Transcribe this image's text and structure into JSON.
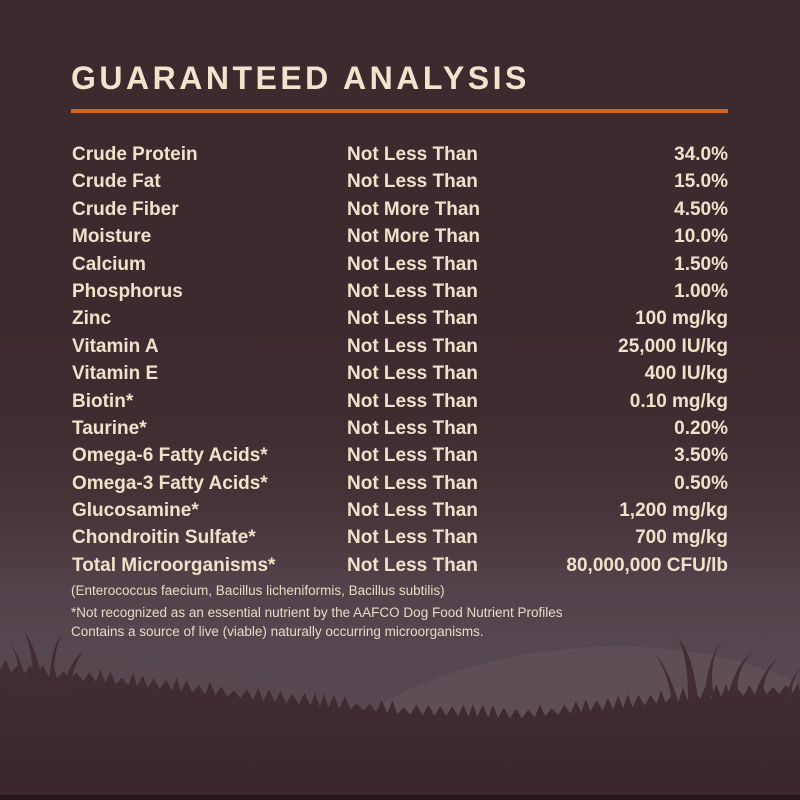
{
  "title": "GUARANTEED ANALYSIS",
  "colors": {
    "background_top": "#3d2a2f",
    "background_bottom": "#574951",
    "accent_rule": "#d4661f",
    "title_text": "#f0e4cd",
    "table_text": "#eee2cb",
    "footnote_text": "#e7dbc6",
    "grass_silhouette": "#3f2a30",
    "hill_light": "#5e4f57",
    "bottom_edge": "#271619"
  },
  "table": {
    "rows": [
      {
        "name": "Crude Protein",
        "qualifier": "Not Less Than",
        "value": "34.0%"
      },
      {
        "name": "Crude Fat",
        "qualifier": "Not Less Than",
        "value": "15.0%"
      },
      {
        "name": "Crude Fiber",
        "qualifier": "Not More Than",
        "value": "4.50%"
      },
      {
        "name": "Moisture",
        "qualifier": "Not More Than",
        "value": "10.0%"
      },
      {
        "name": "Calcium",
        "qualifier": "Not Less Than",
        "value": "1.50%"
      },
      {
        "name": "Phosphorus",
        "qualifier": "Not Less Than",
        "value": "1.00%"
      },
      {
        "name": "Zinc",
        "qualifier": "Not Less Than",
        "value": "100 mg/kg"
      },
      {
        "name": "Vitamin A",
        "qualifier": "Not Less Than",
        "value": "25,000 IU/kg"
      },
      {
        "name": "Vitamin E",
        "qualifier": "Not Less Than",
        "value": "400 IU/kg"
      },
      {
        "name": "Biotin*",
        "qualifier": "Not Less Than",
        "value": "0.10 mg/kg"
      },
      {
        "name": "Taurine*",
        "qualifier": "Not Less Than",
        "value": "0.20%"
      },
      {
        "name": "Omega-6 Fatty Acids*",
        "qualifier": "Not Less Than",
        "value": "3.50%"
      },
      {
        "name": "Omega-3 Fatty Acids*",
        "qualifier": "Not Less Than",
        "value": "0.50%"
      },
      {
        "name": "Glucosamine*",
        "qualifier": "Not Less Than",
        "value": "1,200 mg/kg"
      },
      {
        "name": "Chondroitin Sulfate*",
        "qualifier": "Not Less Than",
        "value": "700 mg/kg"
      },
      {
        "name": "Total Microorganisms*",
        "qualifier": "Not Less Than",
        "value": "80,000,000 CFU/lb"
      }
    ],
    "microorganisms_detail": "(Enterococcus faecium, Bacillus licheniformis, Bacillus subtilis)"
  },
  "footnotes": {
    "line1": "*Not recognized as an essential nutrient by the AAFCO Dog Food Nutrient Profiles",
    "line2": "Contains a source of live (viable) naturally occurring microorganisms."
  }
}
